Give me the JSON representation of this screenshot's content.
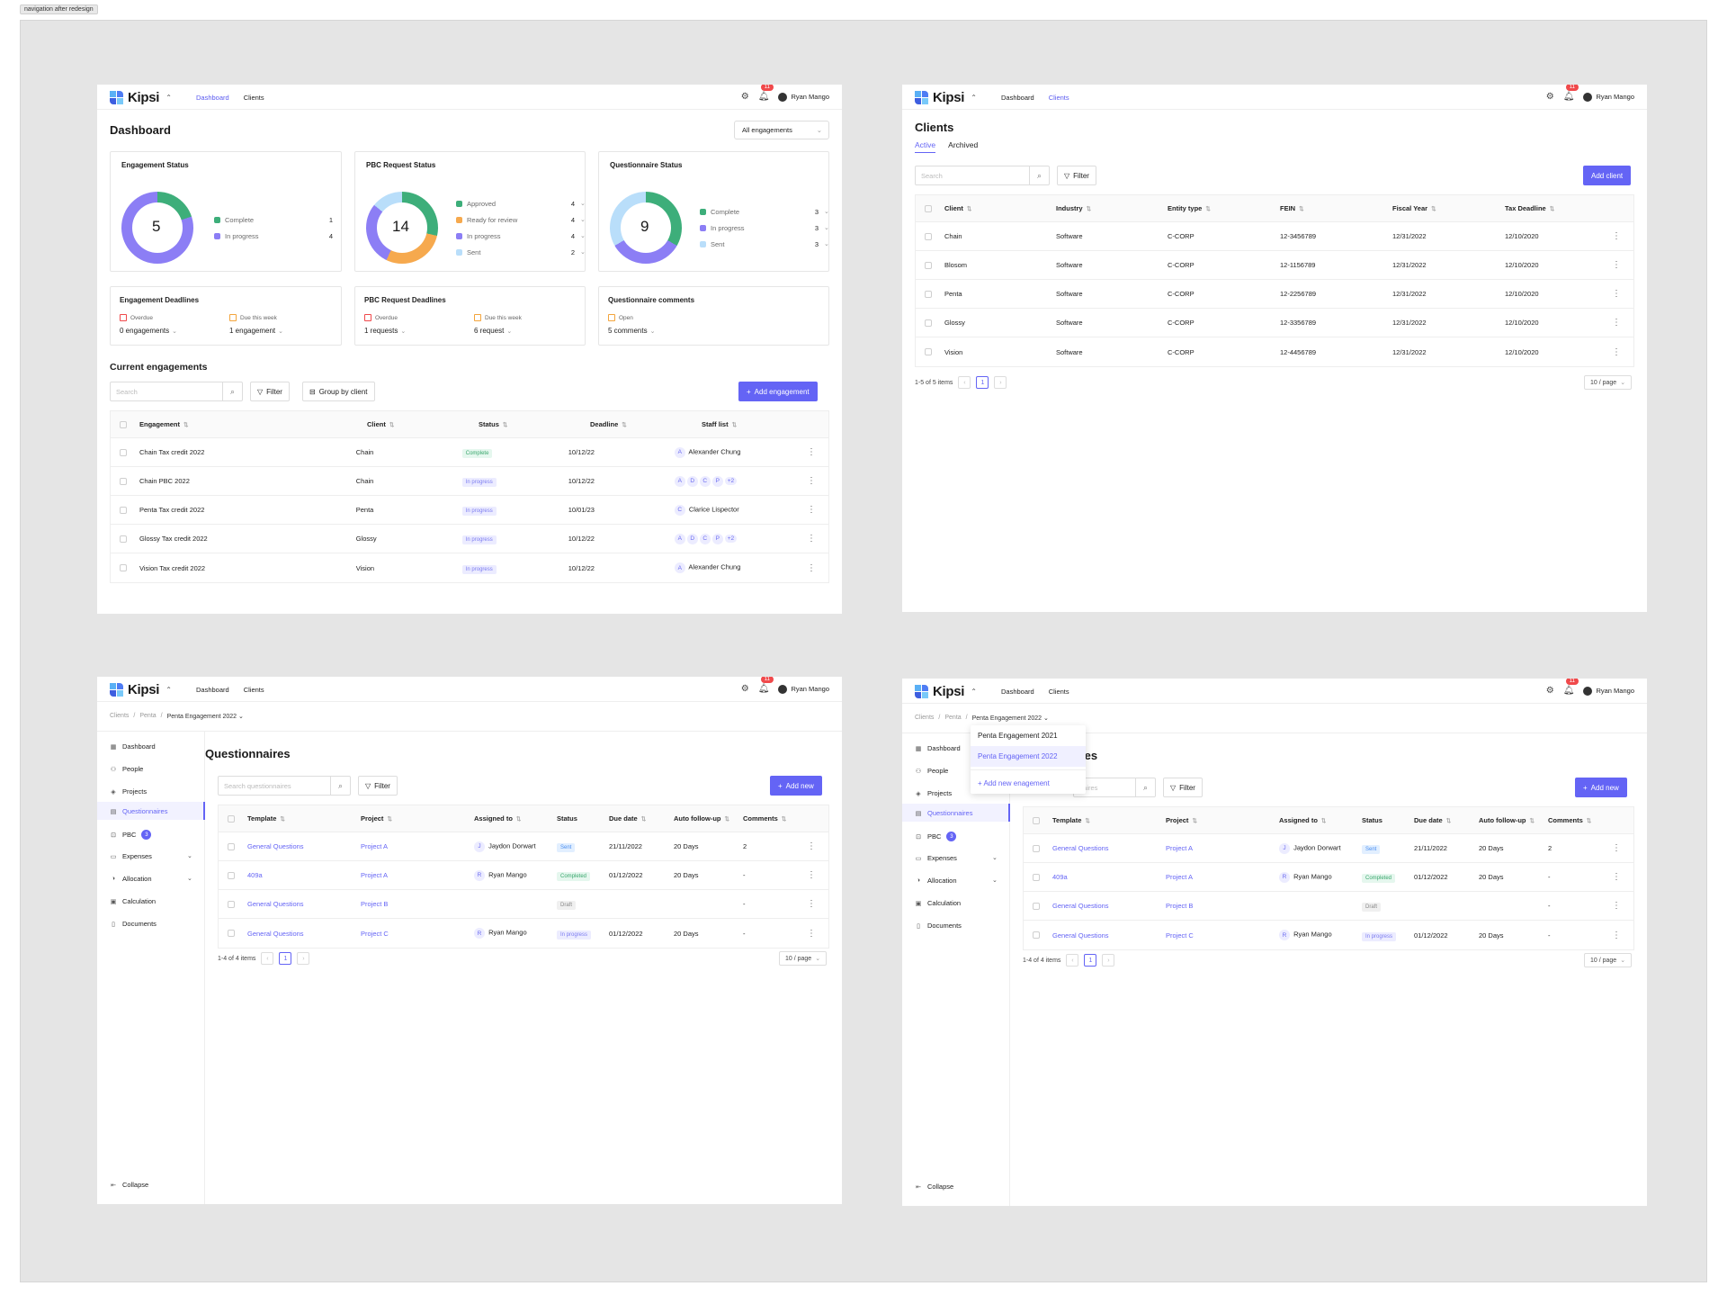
{
  "caption": "navigation after redesign",
  "colors": {
    "accent": "#6464f5",
    "green": "#3dae7a",
    "purple": "#8c7ef5",
    "orange": "#f6a94e",
    "light_blue": "#b9defa",
    "red_badge": "#f0494b"
  },
  "icons": {
    "gear": "gear-icon",
    "bell": "bell-icon",
    "search": "search-icon",
    "filter": "filter-icon",
    "kebab": "more-vertical-icon",
    "chevron": "chevron-down-icon"
  },
  "nav": {
    "logo": "Kipsi",
    "dashboard": "Dashboard",
    "clients": "Clients",
    "badge": "11",
    "user": "Ryan Mango"
  },
  "dashboard": {
    "title": "Dashboard",
    "select": "All engagements",
    "engagement_status": {
      "title": "Engagement Status",
      "total": "5",
      "items": [
        {
          "label": "Complete",
          "count": "1"
        },
        {
          "label": "In progress",
          "count": "4"
        }
      ]
    },
    "pbc_status": {
      "title": "PBC Request Status",
      "total": "14",
      "items": [
        {
          "label": "Approved",
          "count": "4"
        },
        {
          "label": "Ready for review",
          "count": "4"
        },
        {
          "label": "In progress",
          "count": "4"
        },
        {
          "label": "Sent",
          "count": "2"
        }
      ]
    },
    "questionnaire_status": {
      "title": "Questionnaire Status",
      "total": "9",
      "items": [
        {
          "label": "Complete",
          "count": "3"
        },
        {
          "label": "In progress",
          "count": "3"
        },
        {
          "label": "Sent",
          "count": "3"
        }
      ]
    },
    "engagement_deadlines": {
      "title": "Engagement Deadlines",
      "overdue_label": "Overdue",
      "overdue_value": "0 engagements",
      "due_label": "Due this week",
      "due_value": "1 engagement"
    },
    "pbc_deadlines": {
      "title": "PBC Request Deadlines",
      "overdue_label": "Overdue",
      "overdue_value": "1 requests",
      "due_label": "Due this week",
      "due_value": "6 request"
    },
    "questionnaire_comments": {
      "title": "Questionnaire comments",
      "open_label": "Open",
      "open_value": "5 comments"
    },
    "current_title": "Current engagements",
    "search_placeholder": "Search",
    "filter": "Filter",
    "group_by": "Group by client",
    "add_button": "Add engagement",
    "columns": [
      "Engagement",
      "Client",
      "Status",
      "Deadline",
      "Staff list"
    ],
    "rows": [
      {
        "engagement": "Chain Tax credit 2022",
        "client": "Chain",
        "status": "Complete",
        "deadline": "10/12/22",
        "staff_initial": "A",
        "staff_name": "Alexander Chung"
      },
      {
        "engagement": "Chain PBC 2022",
        "client": "Chain",
        "status": "In progress",
        "deadline": "10/12/22",
        "avatars": [
          "A",
          "D",
          "C",
          "P"
        ],
        "more": "+2"
      },
      {
        "engagement": "Penta Tax credit 2022",
        "client": "Penta",
        "status": "In progress",
        "deadline": "10/01/23",
        "staff_initial": "C",
        "staff_name": "Clarice Lispector"
      },
      {
        "engagement": "Glossy Tax credit 2022",
        "client": "Glossy",
        "status": "In progress",
        "deadline": "10/12/22",
        "avatars": [
          "A",
          "D",
          "C",
          "P"
        ],
        "more": "+2"
      },
      {
        "engagement": "Vision Tax credit 2022",
        "client": "Vision",
        "status": "In progress",
        "deadline": "10/12/22",
        "staff_initial": "A",
        "staff_name": "Alexander Chung"
      }
    ]
  },
  "clients_page": {
    "title": "Clients",
    "tab_active": "Active",
    "tab_archived": "Archived",
    "search_placeholder": "Search",
    "filter": "Filter",
    "add_button": "Add client",
    "columns": [
      "Client",
      "Industry",
      "Entity type",
      "FEIN",
      "Fiscal Year",
      "Tax Deadline"
    ],
    "rows": [
      [
        "Chain",
        "Software",
        "C-CORP",
        "12-3456789",
        "12/31/2022",
        "12/10/2020"
      ],
      [
        "Blosom",
        "Software",
        "C-CORP",
        "12-1156789",
        "12/31/2022",
        "12/10/2020"
      ],
      [
        "Penta",
        "Software",
        "C-CORP",
        "12-2256789",
        "12/31/2022",
        "12/10/2020"
      ],
      [
        "Glossy",
        "Software",
        "C-CORP",
        "12-3356789",
        "12/31/2022",
        "12/10/2020"
      ],
      [
        "Vision",
        "Software",
        "C-CORP",
        "12-4456789",
        "12/31/2022",
        "12/10/2020"
      ]
    ],
    "pager_text": "1-5 of 5 items",
    "page": "1",
    "per_page": "10 / page"
  },
  "questionnaires": {
    "breadcrumb": [
      "Clients",
      "Penta",
      "Penta Engagement 2022"
    ],
    "sidebar": [
      "Dashboard",
      "People",
      "Projects",
      "Questionnaires",
      "PBC",
      "Expenses",
      "Allocation",
      "Calculation",
      "Documents"
    ],
    "pbc_badge": "3",
    "collapse": "Collapse",
    "title": "Questionnaires",
    "title_partial": "ires",
    "search_placeholder": "Search questionnaires",
    "search_placeholder_partial": "naires",
    "filter": "Filter",
    "add_button": "Add new",
    "columns": [
      "Template",
      "Project",
      "Assigned to",
      "Status",
      "Due date",
      "Auto follow-up",
      "Comments"
    ],
    "rows": [
      {
        "template": "General Questions",
        "project": "Project A",
        "initial": "J",
        "assignee": "Jaydon Dorwart",
        "status": "Sent",
        "due": "21/11/2022",
        "follow": "20 Days",
        "comments": "2"
      },
      {
        "template": "409a",
        "project": "Project A",
        "initial": "R",
        "assignee": "Ryan Mango",
        "status": "Completed",
        "due": "01/12/2022",
        "follow": "20 Days",
        "comments": "-"
      },
      {
        "template": "General Questions",
        "project": "Project B",
        "initial": "",
        "assignee": "",
        "status": "Draft",
        "due": "",
        "follow": "",
        "comments": "-"
      },
      {
        "template": "General Questions",
        "project": "Project C",
        "initial": "R",
        "assignee": "Ryan Mango",
        "status": "In progress",
        "due": "01/12/2022",
        "follow": "20 Days",
        "comments": "-"
      }
    ],
    "pager_text": "1-4 of 4 items",
    "page": "1",
    "per_page": "10 / page",
    "dropdown": {
      "items": [
        "Penta Engagement 2021",
        "Penta Engagement 2022"
      ],
      "add": "+ Add new enagement"
    }
  }
}
